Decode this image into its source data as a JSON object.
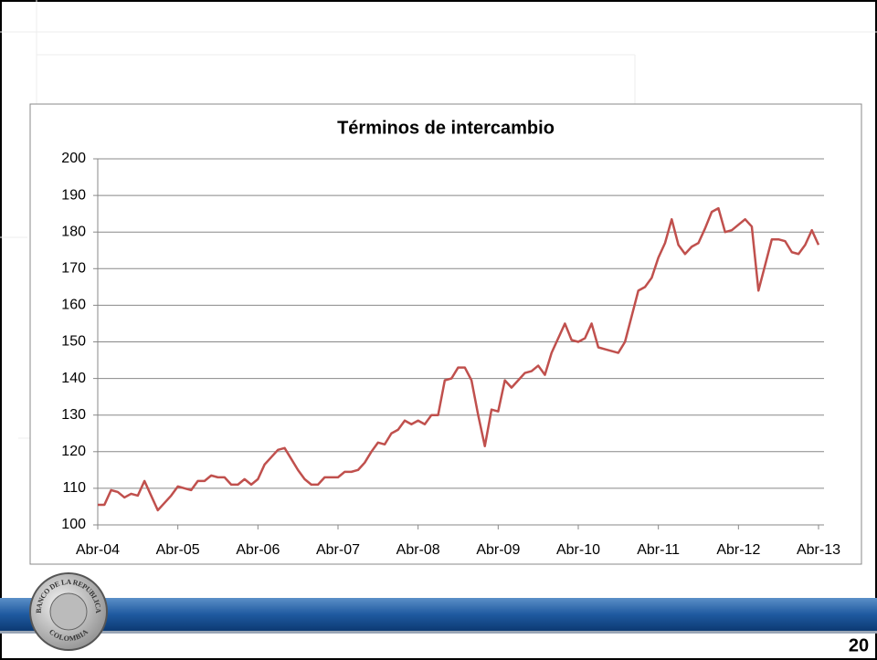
{
  "chart_data": {
    "type": "line",
    "title": "Términos de intercambio",
    "categories": [
      "Abr-04",
      null,
      null,
      null,
      null,
      null,
      null,
      null,
      null,
      null,
      null,
      null,
      "Abr-05",
      null,
      null,
      null,
      null,
      null,
      null,
      null,
      null,
      null,
      null,
      null,
      "Abr-06",
      null,
      null,
      null,
      null,
      null,
      null,
      null,
      null,
      null,
      null,
      null,
      "Abr-07",
      null,
      null,
      null,
      null,
      null,
      null,
      null,
      null,
      null,
      null,
      null,
      "Abr-08",
      null,
      null,
      null,
      null,
      null,
      null,
      null,
      null,
      null,
      null,
      null,
      "Abr-09",
      null,
      null,
      null,
      null,
      null,
      null,
      null,
      null,
      null,
      null,
      null,
      "Abr-10",
      null,
      null,
      null,
      null,
      null,
      null,
      null,
      null,
      null,
      null,
      null,
      "Abr-11",
      null,
      null,
      null,
      null,
      null,
      null,
      null,
      null,
      null,
      null,
      null,
      "Abr-12",
      null,
      null,
      null,
      null,
      null,
      null,
      null,
      null,
      null,
      null,
      null,
      "Abr-13"
    ],
    "values": [
      105.5,
      105.5,
      109.5,
      109,
      107.5,
      108.5,
      108,
      112,
      108,
      104,
      106,
      108,
      110.5,
      110,
      109.5,
      112,
      112,
      113.5,
      113,
      113,
      111,
      111,
      112.5,
      111,
      112.5,
      116.5,
      118.5,
      120.5,
      121,
      118,
      115,
      112.5,
      111,
      111,
      113,
      113,
      113,
      114.5,
      114.5,
      115,
      117,
      120,
      122.5,
      122,
      125,
      126,
      128.5,
      127.5,
      128.5,
      127.5,
      130,
      130,
      139.5,
      140,
      143,
      143,
      139.5,
      130,
      121.5,
      131.5,
      131,
      139.5,
      137.5,
      139.5,
      141.5,
      142,
      143.5,
      141,
      147,
      151,
      155,
      150.5,
      150,
      151,
      155,
      148.5,
      148,
      147.5,
      147,
      150,
      157,
      164,
      165,
      167.5,
      173,
      177,
      183.5,
      176.5,
      174,
      176,
      177,
      181,
      185.5,
      186.5,
      180,
      180.5,
      182,
      183.5,
      181.5,
      164,
      171,
      178,
      178,
      177.5,
      174.5,
      174,
      176.5,
      180.5,
      176.5
    ],
    "color": "#c0504d",
    "ylim": [
      100,
      200
    ],
    "yticks": [
      100,
      110,
      120,
      130,
      140,
      150,
      160,
      170,
      180,
      190,
      200
    ],
    "grid": true
  },
  "slide": {
    "page_number": "20",
    "logo_top": "BANCO DE LA REPUBLICA",
    "logo_bottom": "COLOMBIA"
  }
}
